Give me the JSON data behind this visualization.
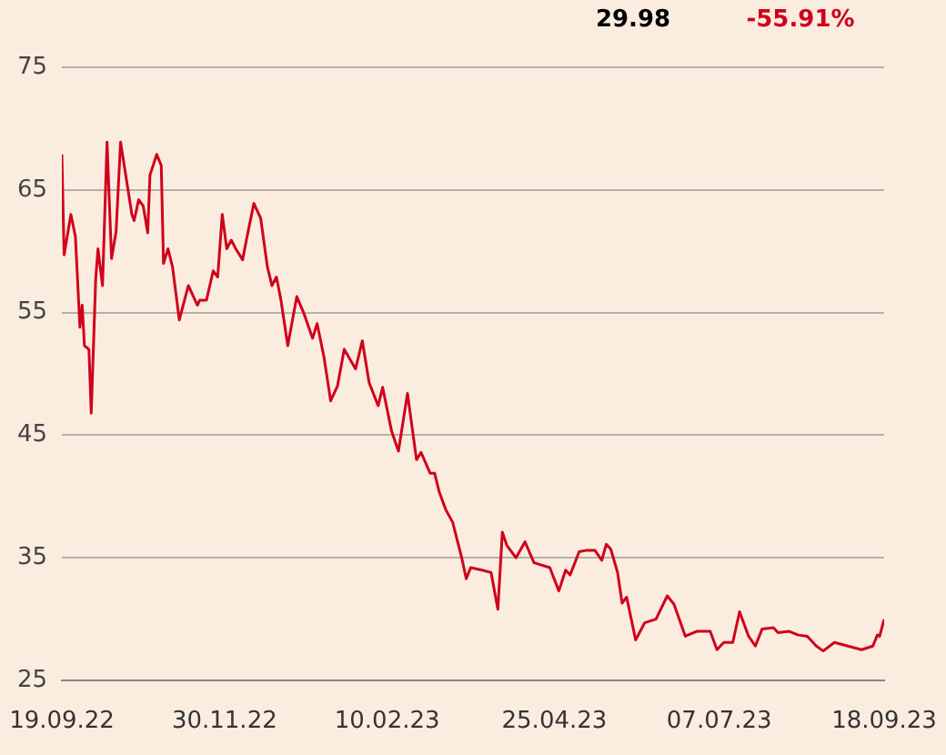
{
  "chart_data": {
    "type": "line",
    "annotations": [
      "29.98",
      "-55.91%"
    ],
    "xlim": [
      "2022-09-19",
      "2023-09-18"
    ],
    "xticks": [
      {
        "value": "2022-09-19",
        "label": "19.09.22"
      },
      {
        "value": "2022-11-30",
        "label": "30.11.22"
      },
      {
        "value": "2023-02-10",
        "label": "10.02.23"
      },
      {
        "value": "2023-04-25",
        "label": "25.04.23"
      },
      {
        "value": "2023-07-07",
        "label": "07.07.23"
      },
      {
        "value": "2023-09-18",
        "label": "18.09.23"
      }
    ],
    "ylim": [
      25,
      75
    ],
    "yticks": [
      25,
      35,
      45,
      55,
      65,
      75
    ],
    "grid": "y",
    "legend": false,
    "marker": "none",
    "line_style": "solid",
    "series": [
      {
        "color": "#d0021b",
        "x": [
          "2022-09-19",
          "2022-09-20",
          "2022-09-23",
          "2022-09-25",
          "2022-09-27",
          "2022-09-28",
          "2022-09-29",
          "2022-10-01",
          "2022-10-02",
          "2022-10-04",
          "2022-10-05",
          "2022-10-07",
          "2022-10-09",
          "2022-10-11",
          "2022-10-13",
          "2022-10-15",
          "2022-10-20",
          "2022-10-21",
          "2022-10-23",
          "2022-10-25",
          "2022-10-27",
          "2022-10-28",
          "2022-10-31",
          "2022-11-02",
          "2022-11-03",
          "2022-11-05",
          "2022-11-07",
          "2022-11-10",
          "2022-11-14",
          "2022-11-18",
          "2022-11-19",
          "2022-11-22",
          "2022-11-25",
          "2022-11-27",
          "2022-11-29",
          "2022-12-01",
          "2022-12-03",
          "2022-12-05",
          "2022-12-08",
          "2022-12-10",
          "2022-12-13",
          "2022-12-16",
          "2022-12-19",
          "2022-12-21",
          "2022-12-23",
          "2022-12-25",
          "2022-12-28",
          "2023-01-01",
          "2023-01-04",
          "2023-01-08",
          "2023-01-10",
          "2023-01-13",
          "2023-01-16",
          "2023-01-19",
          "2023-01-22",
          "2023-01-27",
          "2023-01-30",
          "2023-02-02",
          "2023-02-06",
          "2023-02-08",
          "2023-02-12",
          "2023-02-15",
          "2023-02-19",
          "2023-02-23",
          "2023-02-25",
          "2023-03-01",
          "2023-03-03",
          "2023-03-05",
          "2023-03-08",
          "2023-03-11",
          "2023-03-15",
          "2023-03-17",
          "2023-03-19",
          "2023-03-24",
          "2023-03-28",
          "2023-03-31",
          "2023-04-02",
          "2023-04-04",
          "2023-04-08",
          "2023-04-12",
          "2023-04-16",
          "2023-04-23",
          "2023-04-27",
          "2023-04-30",
          "2023-05-02",
          "2023-05-06",
          "2023-05-09",
          "2023-05-13",
          "2023-05-16",
          "2023-05-18",
          "2023-05-20",
          "2023-05-23",
          "2023-05-25",
          "2023-05-27",
          "2023-05-31",
          "2023-06-04",
          "2023-06-09",
          "2023-06-14",
          "2023-06-17",
          "2023-06-22",
          "2023-06-27",
          "2023-07-03",
          "2023-07-06",
          "2023-07-09",
          "2023-07-13",
          "2023-07-16",
          "2023-07-20",
          "2023-07-23",
          "2023-07-26",
          "2023-07-31",
          "2023-08-02",
          "2023-08-07",
          "2023-08-11",
          "2023-08-15",
          "2023-08-19",
          "2023-08-22",
          "2023-08-27",
          "2023-09-02",
          "2023-09-08",
          "2023-09-13",
          "2023-09-15",
          "2023-09-16",
          "2023-09-18"
        ],
        "values": [
          67.9,
          59.7,
          63.0,
          61.2,
          53.8,
          55.6,
          52.3,
          52.0,
          46.8,
          57.8,
          60.2,
          57.2,
          68.9,
          59.4,
          61.6,
          68.9,
          63.0,
          62.5,
          64.2,
          63.7,
          61.5,
          66.2,
          67.9,
          67.0,
          59.0,
          60.2,
          58.7,
          54.4,
          57.2,
          55.6,
          56.0,
          56.0,
          58.4,
          57.9,
          63.0,
          60.2,
          60.9,
          60.2,
          59.3,
          61.2,
          63.9,
          62.7,
          58.7,
          57.2,
          57.9,
          56.0,
          52.3,
          56.3,
          55.0,
          52.9,
          54.1,
          51.4,
          47.8,
          49.0,
          52.0,
          50.4,
          52.7,
          49.3,
          47.4,
          48.9,
          45.3,
          43.7,
          48.4,
          43.0,
          43.6,
          41.9,
          41.9,
          40.4,
          38.9,
          37.9,
          35.0,
          33.3,
          34.2,
          34.0,
          33.8,
          30.8,
          37.1,
          36.0,
          35.0,
          36.3,
          34.6,
          34.2,
          32.3,
          34.0,
          33.6,
          35.5,
          35.6,
          35.6,
          34.8,
          36.1,
          35.7,
          33.8,
          31.3,
          31.8,
          28.3,
          29.7,
          30.0,
          31.9,
          31.2,
          28.6,
          29.0,
          29.0,
          27.5,
          28.1,
          28.1,
          30.6,
          28.6,
          27.8,
          29.2,
          29.3,
          28.9,
          29.0,
          28.7,
          28.6,
          27.8,
          27.4,
          28.1,
          27.8,
          27.5,
          27.8,
          28.7,
          28.6,
          29.98
        ]
      }
    ]
  }
}
